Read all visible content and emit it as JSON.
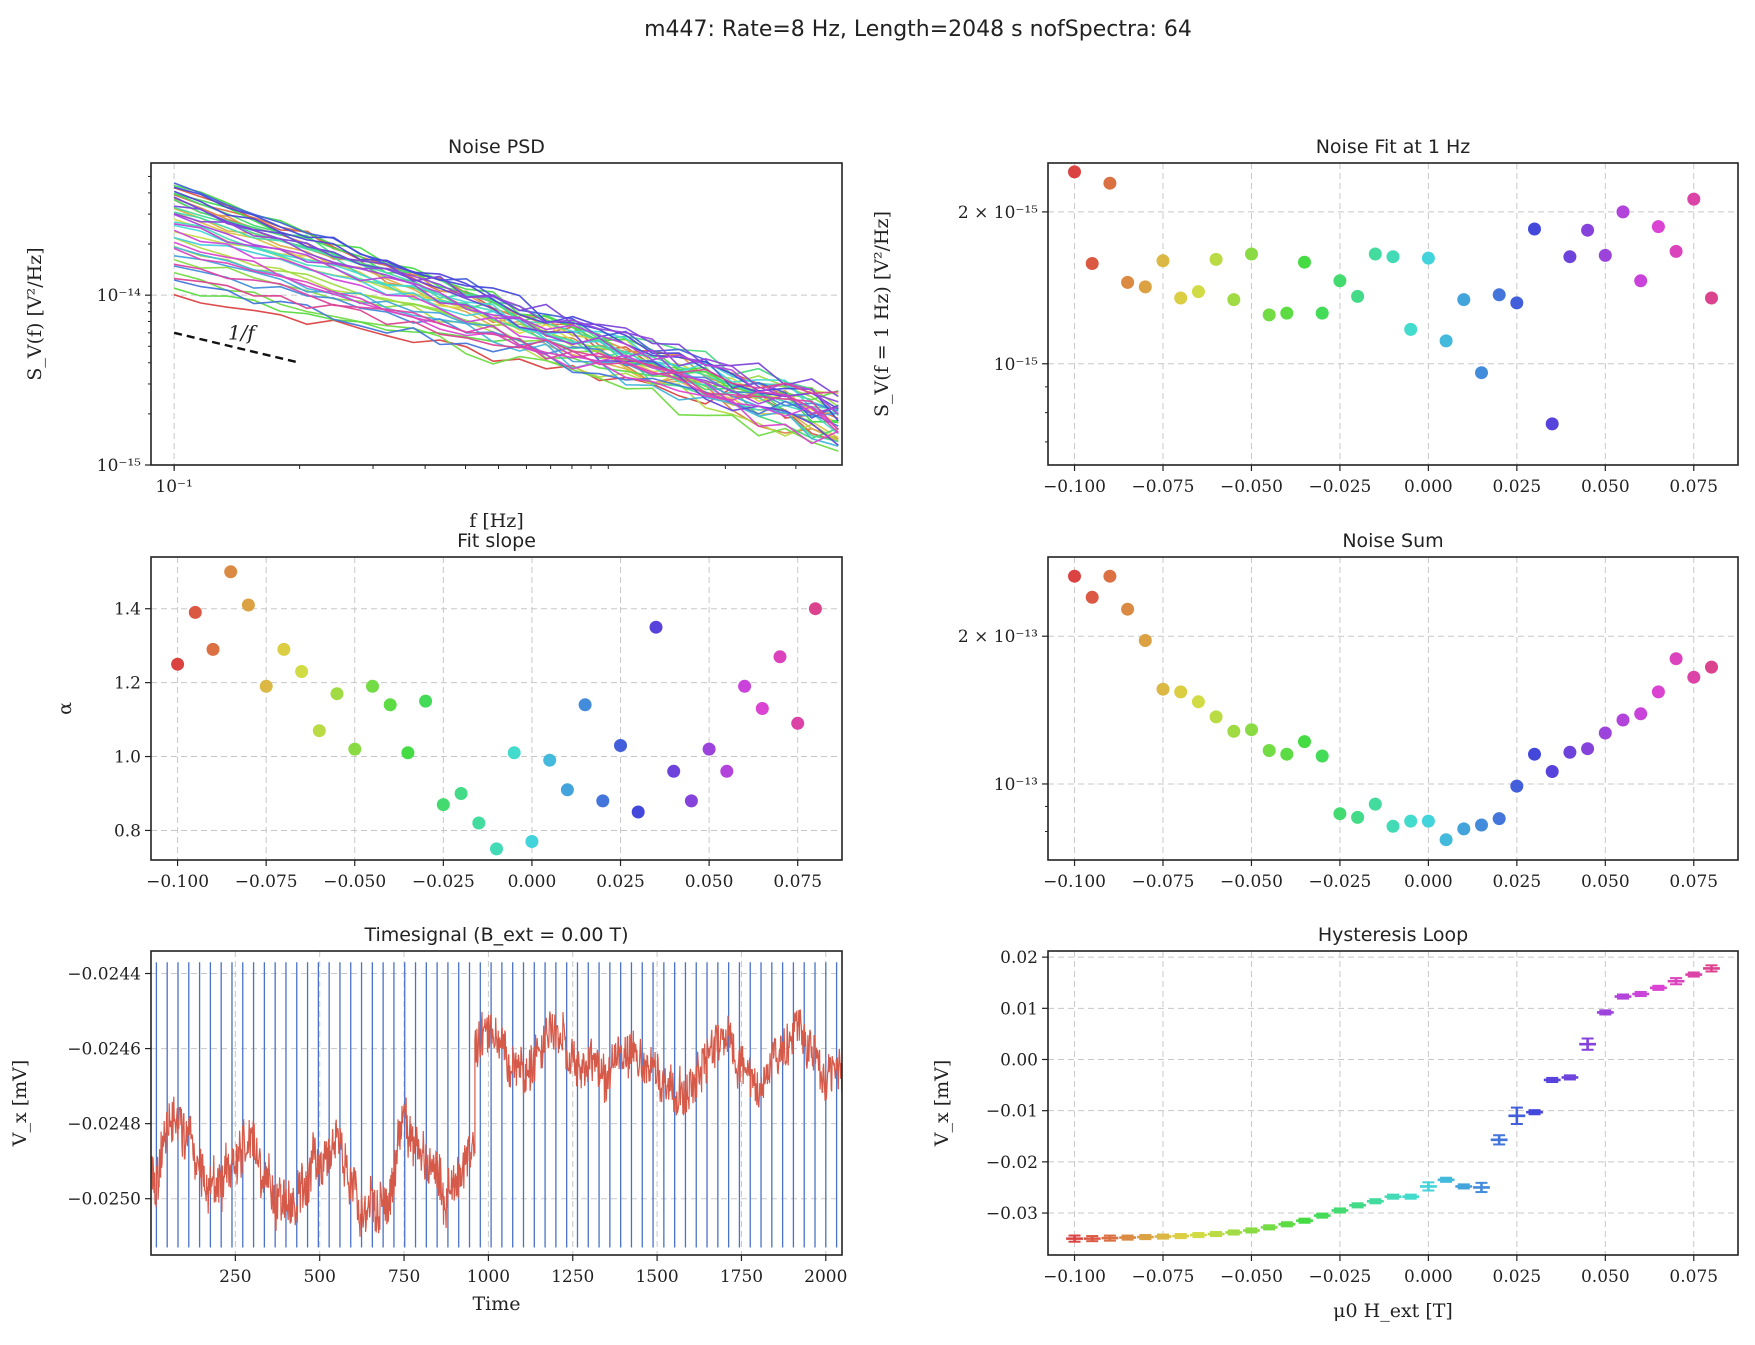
{
  "figure": {
    "suptitle": "m447: Rate=8 Hz, Length=2048 s nofSpectra: 64"
  },
  "chart_data": [
    {
      "id": "psd",
      "type": "line",
      "title": "Noise PSD",
      "xlabel": "f [Hz]",
      "ylabel": "S_V(f) [V²/Hz]",
      "xscale": "log",
      "yscale": "log",
      "xlim": [
        0.088,
        4.0
      ],
      "ylim": [
        1e-15,
        6e-14
      ],
      "xtick_labels": [
        "10⁻¹"
      ],
      "ytick_labels": [
        "10⁻¹⁴",
        "10⁻¹⁵"
      ],
      "annotation": "1/f",
      "series_count": 40,
      "amplitude_at_0_1Hz_range": [
        1e-14,
        4.5e-14
      ],
      "amplitude_at_4Hz_range": [
        1.3e-15,
        2.5e-15
      ],
      "grid": true
    },
    {
      "id": "fit1hz",
      "type": "scatter",
      "title": "Noise Fit at 1 Hz",
      "xlabel": "",
      "ylabel": "S_V(f = 1 Hz) [V²/Hz]",
      "yscale": "log",
      "xlim": [
        -0.1075,
        0.0875
      ],
      "ylim": [
        6.3e-16,
        2.5e-15
      ],
      "xtick_labels": [
        "−0.100",
        "−0.075",
        "−0.050",
        "−0.025",
        "0.000",
        "0.025",
        "0.050",
        "0.075"
      ],
      "ytick_labels": [
        "2 × 10⁻¹⁵",
        "10⁻¹⁵"
      ],
      "x": [
        -0.1,
        -0.095,
        -0.09,
        -0.085,
        -0.08,
        -0.075,
        -0.07,
        -0.065,
        -0.06,
        -0.055,
        -0.05,
        -0.045,
        -0.04,
        -0.035,
        -0.03,
        -0.025,
        -0.02,
        -0.015,
        -0.01,
        -0.005,
        0.0,
        0.005,
        0.01,
        0.015,
        0.02,
        0.025,
        0.03,
        0.035,
        0.04,
        0.045,
        0.05,
        0.055,
        0.06,
        0.065,
        0.07,
        0.075,
        0.08
      ],
      "y": [
        2.4e-15,
        1.58e-15,
        2.28e-15,
        1.45e-15,
        1.42e-15,
        1.6e-15,
        1.35e-15,
        1.39e-15,
        1.61e-15,
        1.34e-15,
        1.65e-15,
        1.25e-15,
        1.26e-15,
        1.59e-15,
        1.26e-15,
        1.46e-15,
        1.36e-15,
        1.65e-15,
        1.63e-15,
        1.17e-15,
        1.62e-15,
        1.11e-15,
        1.34e-15,
        9.6e-16,
        1.37e-15,
        1.32e-15,
        1.85e-15,
        7.6e-16,
        1.63e-15,
        1.84e-15,
        1.64e-15,
        2e-15,
        1.46e-15,
        1.87e-15,
        1.67e-15,
        2.12e-15,
        1.35e-15
      ],
      "grid": true
    },
    {
      "id": "slope",
      "type": "scatter",
      "title": "Fit slope",
      "xlabel": "",
      "ylabel": "α",
      "xlim": [
        -0.1075,
        0.0875
      ],
      "ylim": [
        0.72,
        1.54
      ],
      "xtick_labels": [
        "−0.100",
        "−0.075",
        "−0.050",
        "−0.025",
        "0.000",
        "0.025",
        "0.050",
        "0.075"
      ],
      "ytick_labels": [
        "1.4",
        "1.2",
        "1.0",
        "0.8"
      ],
      "x": [
        -0.1,
        -0.095,
        -0.09,
        -0.085,
        -0.08,
        -0.075,
        -0.07,
        -0.065,
        -0.06,
        -0.055,
        -0.05,
        -0.045,
        -0.04,
        -0.035,
        -0.03,
        -0.025,
        -0.02,
        -0.015,
        -0.01,
        -0.005,
        0.0,
        0.005,
        0.01,
        0.015,
        0.02,
        0.025,
        0.03,
        0.035,
        0.04,
        0.045,
        0.05,
        0.055,
        0.06,
        0.065,
        0.07,
        0.075,
        0.08
      ],
      "y": [
        1.25,
        1.39,
        1.29,
        1.5,
        1.41,
        1.19,
        1.29,
        1.23,
        1.07,
        1.17,
        1.02,
        1.19,
        1.14,
        1.01,
        1.15,
        0.87,
        0.9,
        0.82,
        0.75,
        1.01,
        0.77,
        0.99,
        0.91,
        1.14,
        0.88,
        1.03,
        0.85,
        1.35,
        0.96,
        0.88,
        1.02,
        0.96,
        1.19,
        1.13,
        1.27,
        1.09,
        1.4
      ],
      "grid": true
    },
    {
      "id": "noisesum",
      "type": "scatter",
      "title": "Noise Sum",
      "xlabel": "",
      "ylabel": "",
      "yscale": "log",
      "xlim": [
        -0.1075,
        0.0875
      ],
      "ylim": [
        7e-14,
        2.9e-13
      ],
      "xtick_labels": [
        "−0.100",
        "−0.075",
        "−0.050",
        "−0.025",
        "0.000",
        "0.025",
        "0.050",
        "0.075"
      ],
      "ytick_labels": [
        "2 × 10⁻¹³",
        "10⁻¹³"
      ],
      "x": [
        -0.1,
        -0.095,
        -0.09,
        -0.085,
        -0.08,
        -0.075,
        -0.07,
        -0.065,
        -0.06,
        -0.055,
        -0.05,
        -0.045,
        -0.04,
        -0.035,
        -0.03,
        -0.025,
        -0.02,
        -0.015,
        -0.01,
        -0.005,
        0.0,
        0.005,
        0.01,
        0.015,
        0.02,
        0.025,
        0.03,
        0.035,
        0.04,
        0.045,
        0.05,
        0.055,
        0.06,
        0.065,
        0.07,
        0.075,
        0.08
      ],
      "y": [
        2.65e-13,
        2.4e-13,
        2.65e-13,
        2.27e-13,
        1.96e-13,
        1.56e-13,
        1.54e-13,
        1.47e-13,
        1.37e-13,
        1.28e-13,
        1.29e-13,
        1.17e-13,
        1.15e-13,
        1.22e-13,
        1.14e-13,
        8.7e-14,
        8.55e-14,
        9.1e-14,
        8.2e-14,
        8.4e-14,
        8.4e-14,
        7.7e-14,
        8.1e-14,
        8.25e-14,
        8.5e-14,
        9.9e-14,
        1.15e-13,
        1.06e-13,
        1.16e-13,
        1.18e-13,
        1.27e-13,
        1.35e-13,
        1.39e-13,
        1.54e-13,
        1.8e-13,
        1.65e-13,
        1.73e-13
      ],
      "grid": true
    },
    {
      "id": "timesignal",
      "type": "line",
      "title": "Timesignal (B_ext = 0.00 T)",
      "xlabel": "Time",
      "ylabel": "V_x [mV]",
      "xlim": [
        0,
        2048
      ],
      "ylim": [
        -0.02515,
        -0.02434
      ],
      "xtick_labels": [
        "250",
        "500",
        "750",
        "1000",
        "1250",
        "1500",
        "1750",
        "2000"
      ],
      "ytick_labels": [
        "−0.0244",
        "−0.0246",
        "−0.0248",
        "−0.0250"
      ],
      "segments": [
        {
          "x_range": [
            0,
            960
          ],
          "mean": -0.02489,
          "std": 8e-05
        },
        {
          "x_range": [
            960,
            2048
          ],
          "mean": -0.02464,
          "std": 7e-05
        }
      ],
      "marker_lines": 64,
      "colors": {
        "signal": "#d65a4a",
        "markers": "#4a72c8"
      },
      "grid": true
    },
    {
      "id": "hysteresis",
      "type": "line",
      "title": "Hysteresis Loop",
      "xlabel": "μ0 H_ext [T]",
      "ylabel": "V_x [mV]",
      "xlim": [
        -0.1075,
        0.0875
      ],
      "ylim": [
        -0.0382,
        0.0212
      ],
      "xtick_labels": [
        "−0.100",
        "−0.075",
        "−0.050",
        "−0.025",
        "0.000",
        "0.025",
        "0.050",
        "0.075"
      ],
      "ytick_labels": [
        "0.02",
        "0.01",
        "0.00",
        "−0.01",
        "−0.02",
        "−0.03"
      ],
      "x": [
        -0.1,
        -0.095,
        -0.09,
        -0.085,
        -0.08,
        -0.075,
        -0.07,
        -0.065,
        -0.06,
        -0.055,
        -0.05,
        -0.045,
        -0.04,
        -0.035,
        -0.03,
        -0.025,
        -0.02,
        -0.015,
        -0.01,
        -0.005,
        0.0,
        0.005,
        0.01,
        0.015,
        0.02,
        0.025,
        0.03,
        0.035,
        0.04,
        0.045,
        0.05,
        0.055,
        0.06,
        0.065,
        0.07,
        0.075,
        0.08
      ],
      "y": [
        -0.035,
        -0.035,
        -0.0349,
        -0.0348,
        -0.0347,
        -0.0346,
        -0.0345,
        -0.0343,
        -0.0341,
        -0.0338,
        -0.0334,
        -0.0328,
        -0.0322,
        -0.0315,
        -0.0305,
        -0.0295,
        -0.0285,
        -0.0277,
        -0.0268,
        -0.0268,
        -0.0248,
        -0.0235,
        -0.0248,
        -0.025,
        -0.0157,
        -0.011,
        -0.0103,
        -0.004,
        -0.0035,
        0.003,
        0.0092,
        0.0123,
        0.0128,
        0.014,
        0.0153,
        0.0166,
        0.0178
      ],
      "err": [
        0.0006,
        0.0005,
        0.0005,
        0.0004,
        0.0004,
        0.0004,
        0.0004,
        0.0004,
        0.0004,
        0.0004,
        0.0004,
        0.0004,
        0.0004,
        0.0004,
        0.0004,
        0.0004,
        0.0004,
        0.0004,
        0.0004,
        0.0004,
        0.0008,
        0.0004,
        0.0004,
        0.0009,
        0.0009,
        0.0016,
        0.0004,
        0.0004,
        0.0004,
        0.0011,
        0.0004,
        0.0004,
        0.0004,
        0.0004,
        0.0006,
        0.0004,
        0.0006
      ],
      "grid": true
    }
  ]
}
